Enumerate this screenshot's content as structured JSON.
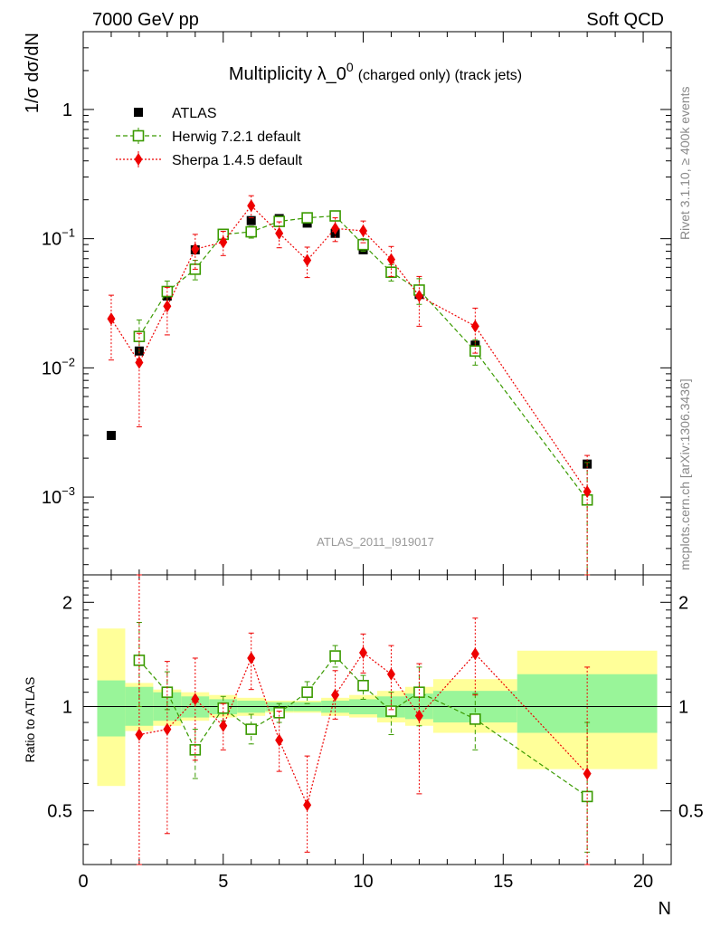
{
  "header": {
    "left": "7000 GeV pp",
    "right": "Soft QCD"
  },
  "side_labels": {
    "rivet": "Rivet 3.1.10, ≥ 400k events",
    "mcplots": "mcplots.cern.ch [arXiv:1306.3436]"
  },
  "colors": {
    "atlas": "#000000",
    "herwig": "#3a9a00",
    "sherpa": "#ee0000",
    "band_inner": "#99f599",
    "band_outer": "#ffff99"
  },
  "chart_data": {
    "type": "scatter",
    "title": "Multiplicity λ_0^0 (charged only) (track jets)",
    "title_main": "Multiplicity λ_0",
    "title_sup": "0",
    "title_suffix": "(charged only) (track jets)",
    "analysis_id": "ATLAS_2011_I919017",
    "xlabel": "N",
    "ylabel": "1/σ dσ/dN",
    "ratio_ylabel": "Ratio to ATLAS",
    "xlim": [
      0,
      21
    ],
    "ylim": [
      0.00025,
      4
    ],
    "ratio_ylim": [
      0.35,
      2.4
    ],
    "yscale": "log",
    "ratio_yscale": "log",
    "x_ticks": [
      0,
      5,
      10,
      15,
      20
    ],
    "y_ticks": [
      {
        "value": 0.001,
        "label": "10",
        "exp": "−3"
      },
      {
        "value": 0.01,
        "label": "10",
        "exp": "−2"
      },
      {
        "value": 0.1,
        "label": "10",
        "exp": "−1"
      },
      {
        "value": 1,
        "label": "1",
        "exp": ""
      }
    ],
    "ratio_ticks": [
      {
        "value": 0.5,
        "label": "0.5"
      },
      {
        "value": 1,
        "label": "1"
      },
      {
        "value": 2,
        "label": "2"
      }
    ],
    "legend": [
      {
        "key": "atlas",
        "label": "ATLAS"
      },
      {
        "key": "herwig",
        "label": "Herwig 7.2.1 default"
      },
      {
        "key": "sherpa",
        "label": "Sherpa 1.4.5 default"
      }
    ],
    "series": [
      {
        "name": "ATLAS",
        "key": "atlas",
        "style": "points",
        "x": [
          1,
          2,
          3,
          4,
          5,
          6,
          7,
          8,
          9,
          10,
          11,
          12,
          14,
          18
        ],
        "values": [
          0.003,
          0.0135,
          0.036,
          0.082,
          0.11,
          0.138,
          0.143,
          0.132,
          0.11,
          0.082,
          0.055,
          0.037,
          0.015,
          0.0018
        ]
      },
      {
        "name": "Herwig 7.2.1 default",
        "key": "herwig",
        "style": "dashed",
        "x": [
          2,
          3,
          4,
          5,
          6,
          7,
          8,
          9,
          10,
          11,
          12,
          14,
          18
        ],
        "values": [
          0.0175,
          0.039,
          0.058,
          0.108,
          0.113,
          0.136,
          0.145,
          0.15,
          0.09,
          0.055,
          0.04,
          0.0135,
          0.00095
        ],
        "errors": [
          0.006,
          0.008,
          0.01,
          0.01,
          0.012,
          0.012,
          0.012,
          0.012,
          0.01,
          0.008,
          0.009,
          0.003,
          0.0009
        ]
      },
      {
        "name": "Sherpa 1.4.5 default",
        "key": "sherpa",
        "style": "dotted",
        "x": [
          1,
          2,
          3,
          4,
          5,
          6,
          7,
          8,
          9,
          10,
          11,
          12,
          14,
          18
        ],
        "values": [
          0.024,
          0.011,
          0.03,
          0.083,
          0.094,
          0.18,
          0.11,
          0.068,
          0.12,
          0.115,
          0.069,
          0.036,
          0.021,
          0.0011
        ],
        "errors": [
          0.0125,
          0.0075,
          0.012,
          0.025,
          0.02,
          0.035,
          0.025,
          0.018,
          0.025,
          0.022,
          0.018,
          0.015,
          0.008,
          0.001
        ]
      }
    ],
    "ratio_series": [
      {
        "key": "herwig",
        "x": [
          2,
          3,
          4,
          5,
          6,
          7,
          8,
          9,
          10,
          11,
          12,
          14,
          18
        ],
        "values": [
          1.36,
          1.1,
          0.75,
          0.99,
          0.86,
          0.96,
          1.1,
          1.4,
          1.15,
          0.97,
          1.1,
          0.92,
          0.55
        ],
        "lo": [
          1.0,
          0.98,
          0.62,
          0.91,
          0.78,
          0.9,
          1.02,
          1.3,
          1.05,
          0.83,
          0.88,
          0.75,
          0.38
        ],
        "hi": [
          1.75,
          1.26,
          0.86,
          1.07,
          0.95,
          1.02,
          1.18,
          1.5,
          1.23,
          1.1,
          1.3,
          1.09,
          0.9
        ]
      },
      {
        "key": "sherpa",
        "x": [
          2,
          3,
          4,
          5,
          6,
          7,
          8,
          9,
          10,
          11,
          12,
          14,
          18
        ],
        "values": [
          0.83,
          0.86,
          1.05,
          0.88,
          1.38,
          0.8,
          0.52,
          1.08,
          1.43,
          1.24,
          0.94,
          1.42,
          0.64
        ],
        "lo": [
          0.3,
          0.43,
          0.7,
          0.75,
          1.12,
          0.65,
          0.38,
          0.92,
          1.25,
          0.98,
          0.56,
          1.08,
          0.3
        ],
        "hi": [
          2.4,
          1.35,
          1.38,
          1.02,
          1.63,
          0.97,
          0.72,
          1.27,
          1.62,
          1.5,
          1.33,
          1.8,
          1.3
        ]
      }
    ],
    "ratio_bands": [
      {
        "x0": 0.5,
        "x1": 1.5,
        "in_lo": 0.82,
        "in_hi": 1.19,
        "out_lo": 0.59,
        "out_hi": 1.68
      },
      {
        "x0": 1.5,
        "x1": 2.5,
        "in_lo": 0.88,
        "in_hi": 1.14,
        "out_lo": 0.85,
        "out_hi": 1.17
      },
      {
        "x0": 2.5,
        "x1": 3.5,
        "in_lo": 0.91,
        "in_hi": 1.1,
        "out_lo": 0.88,
        "out_hi": 1.12
      },
      {
        "x0": 3.5,
        "x1": 4.5,
        "in_lo": 0.93,
        "in_hi": 1.07,
        "out_lo": 0.91,
        "out_hi": 1.1
      },
      {
        "x0": 4.5,
        "x1": 5.5,
        "in_lo": 0.95,
        "in_hi": 1.05,
        "out_lo": 0.93,
        "out_hi": 1.08
      },
      {
        "x0": 5.5,
        "x1": 6.5,
        "in_lo": 0.96,
        "in_hi": 1.04,
        "out_lo": 0.94,
        "out_hi": 1.06
      },
      {
        "x0": 6.5,
        "x1": 7.5,
        "in_lo": 0.97,
        "in_hi": 1.03,
        "out_lo": 0.96,
        "out_hi": 1.04
      },
      {
        "x0": 7.5,
        "x1": 8.5,
        "in_lo": 0.97,
        "in_hi": 1.03,
        "out_lo": 0.96,
        "out_hi": 1.04
      },
      {
        "x0": 8.5,
        "x1": 9.5,
        "in_lo": 0.96,
        "in_hi": 1.04,
        "out_lo": 0.94,
        "out_hi": 1.06
      },
      {
        "x0": 9.5,
        "x1": 10.5,
        "in_lo": 0.95,
        "in_hi": 1.05,
        "out_lo": 0.93,
        "out_hi": 1.08
      },
      {
        "x0": 10.5,
        "x1": 11.5,
        "in_lo": 0.93,
        "in_hi": 1.07,
        "out_lo": 0.9,
        "out_hi": 1.11
      },
      {
        "x0": 11.5,
        "x1": 12.5,
        "in_lo": 0.92,
        "in_hi": 1.09,
        "out_lo": 0.88,
        "out_hi": 1.14
      },
      {
        "x0": 12.5,
        "x1": 15.5,
        "in_lo": 0.9,
        "in_hi": 1.11,
        "out_lo": 0.84,
        "out_hi": 1.2
      },
      {
        "x0": 15.5,
        "x1": 20.5,
        "in_lo": 0.84,
        "in_hi": 1.24,
        "out_lo": 0.66,
        "out_hi": 1.45
      }
    ]
  }
}
